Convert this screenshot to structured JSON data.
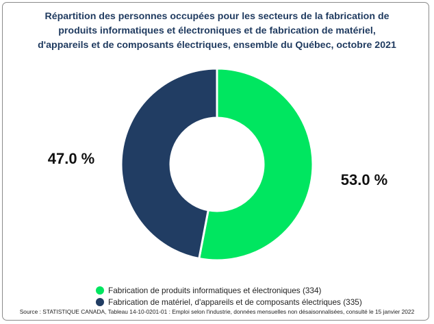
{
  "title_lines": [
    "Répartition des personnes occupées pour les secteurs de la fabrication de",
    "produits informatiques et électroniques et de fabrication de matériel,",
    "d'appareils et de composants électriques, ensemble du Québec, octobre 2021"
  ],
  "chart_data": {
    "type": "pie",
    "variant": "donut",
    "title": "Répartition des personnes occupées pour les secteurs de la fabrication de produits informatiques et électroniques et de fabrication de matériel, d'appareils et de composants électriques, ensemble du Québec, octobre 2021",
    "slices": [
      {
        "label": "Fabrication de produits informatiques et électroniques (334)",
        "value": 53.0,
        "display": "53.0 %",
        "color": "#00e660"
      },
      {
        "label": "Fabrication de matériel, d'appareils et de composants électriques (335)",
        "value": 47.0,
        "display": "47.0 %",
        "color": "#213d63"
      }
    ],
    "legend_position": "bottom-left"
  },
  "source": "Source : STATISTIQUE CANADA, Tableau 14-10-0201-01 : Emploi selon l'industrie, données mensuelles non désaisonnalisées, consulté le 15 janvier 2022"
}
